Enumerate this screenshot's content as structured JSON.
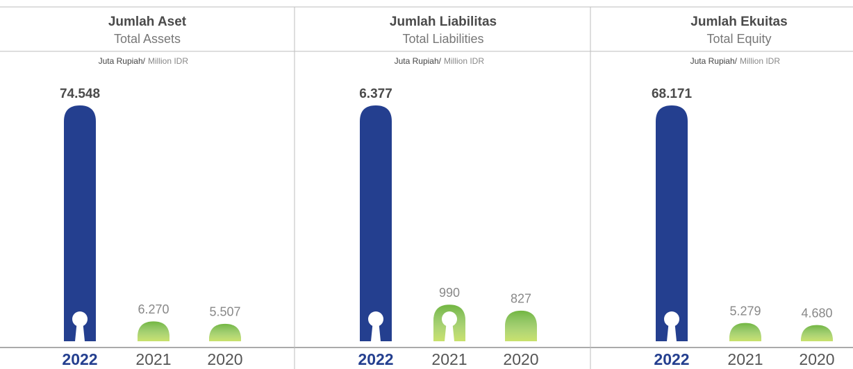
{
  "chart_data": [
    {
      "type": "bar",
      "title": "Jumlah Aset",
      "subtitle": "Total Assets",
      "unit_id": "Juta Rupiah/",
      "unit_en": "Million IDR",
      "categories": [
        "2022",
        "2021",
        "2020"
      ],
      "values": [
        74548,
        6270,
        5507
      ],
      "value_labels": [
        "74.548",
        "6.270",
        "5.507"
      ],
      "colors": [
        "#243f8f",
        "#72b640",
        "#72b640"
      ]
    },
    {
      "type": "bar",
      "title": "Jumlah Liabilitas",
      "subtitle": "Total Liabilities",
      "unit_id": "Juta Rupiah/",
      "unit_en": "Million IDR",
      "categories": [
        "2022",
        "2021",
        "2020"
      ],
      "values": [
        6377,
        990,
        827
      ],
      "value_labels": [
        "6.377",
        "990",
        "827"
      ],
      "colors": [
        "#243f8f",
        "#72b640",
        "#72b640"
      ]
    },
    {
      "type": "bar",
      "title": "Jumlah Ekuitas",
      "subtitle": "Total Equity",
      "unit_id": "Juta Rupiah/",
      "unit_en": "Million IDR",
      "categories": [
        "2022",
        "2021",
        "2020"
      ],
      "values": [
        68171,
        5279,
        4680
      ],
      "value_labels": [
        "68.171",
        "5.279",
        "4.680"
      ],
      "colors": [
        "#243f8f",
        "#72b640",
        "#72b640"
      ]
    }
  ]
}
